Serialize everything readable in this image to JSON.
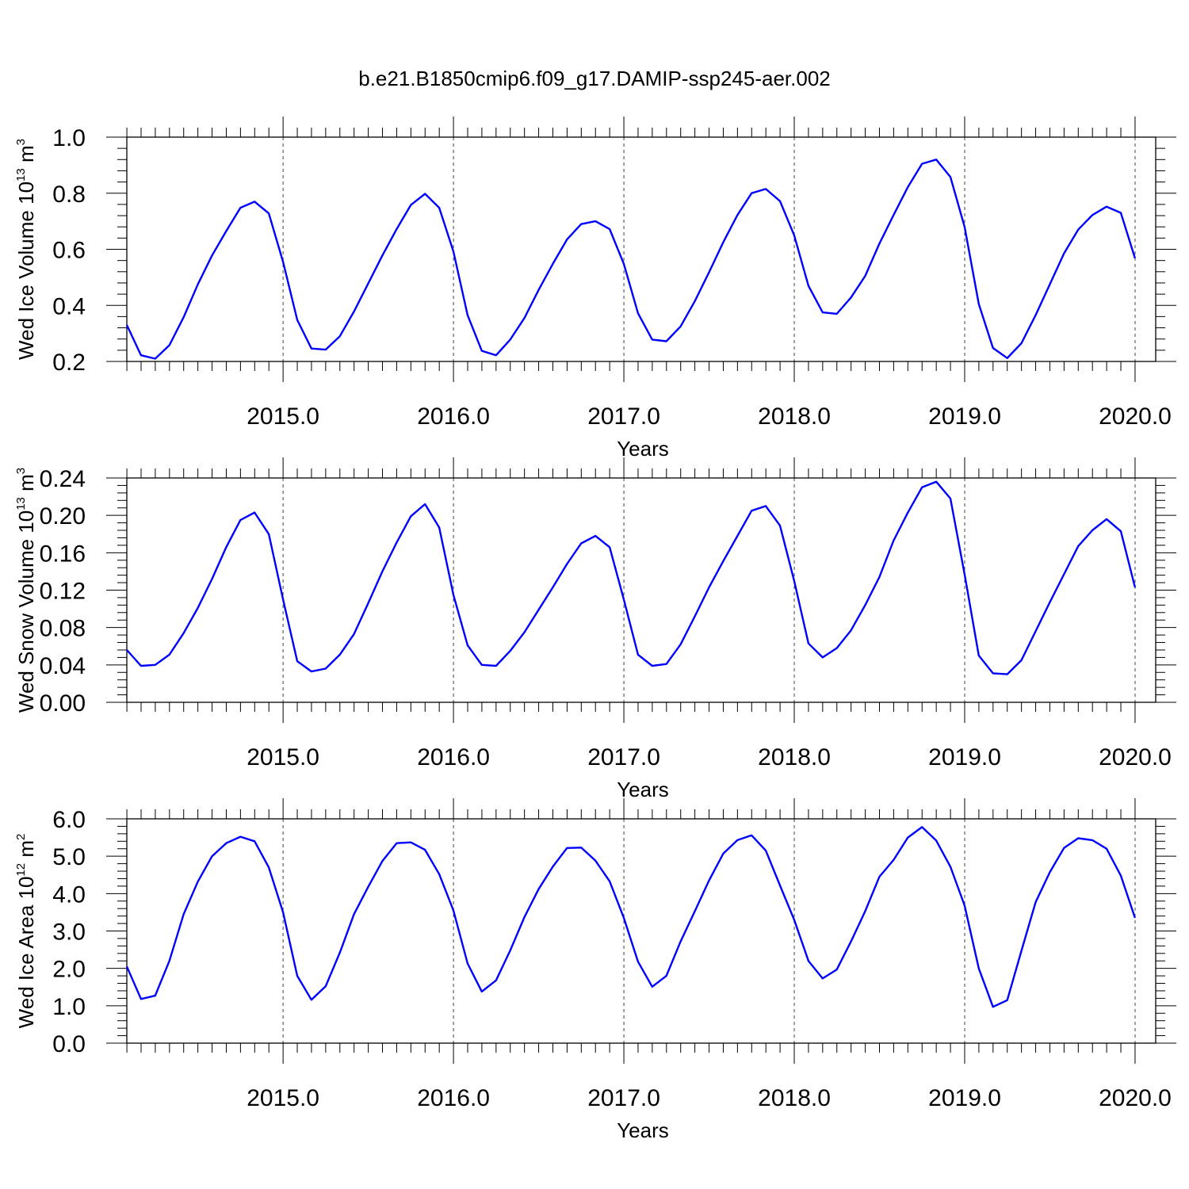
{
  "figure": {
    "title": "b.e21.B1850cmip6.f09_g17.DAMIP-ssp245-aer.002"
  },
  "chart_data": [
    {
      "type": "line",
      "name": "ice-volume",
      "ylabel": "Wed Ice Volume 10",
      "ylabel_exp": "13",
      "ylabel_unit": "m",
      "ylabel_unit_exp": "3",
      "xlabel": "Years",
      "xlim": [
        2014.083,
        2020.0
      ],
      "ylim": [
        0.2,
        1.0
      ],
      "yticks": [
        0.2,
        0.4,
        0.6,
        0.8,
        1.0
      ],
      "ytick_labels": [
        "0.2",
        "0.4",
        "0.6",
        "0.8",
        "1.0"
      ],
      "xticks": [
        2015,
        2016,
        2017,
        2018,
        2019,
        2020
      ],
      "xtick_labels": [
        "2015.0",
        "2016.0",
        "2017.0",
        "2018.0",
        "2019.0",
        "2020.0"
      ],
      "color": "#0000ff",
      "grid_x": "dashed",
      "x_start": 2014.083,
      "x_step": 0.08333,
      "values": [
        0.33,
        0.222,
        0.21,
        0.258,
        0.358,
        0.475,
        0.578,
        0.665,
        0.748,
        0.77,
        0.728,
        0.555,
        0.348,
        0.246,
        0.242,
        0.29,
        0.378,
        0.478,
        0.578,
        0.672,
        0.758,
        0.798,
        0.748,
        0.592,
        0.365,
        0.238,
        0.222,
        0.278,
        0.355,
        0.455,
        0.548,
        0.635,
        0.69,
        0.7,
        0.672,
        0.548,
        0.372,
        0.278,
        0.272,
        0.325,
        0.415,
        0.518,
        0.625,
        0.722,
        0.8,
        0.815,
        0.772,
        0.65,
        0.47,
        0.375,
        0.37,
        0.428,
        0.505,
        0.62,
        0.722,
        0.822,
        0.905,
        0.92,
        0.858,
        0.68,
        0.405,
        0.248,
        0.212,
        0.265,
        0.365,
        0.475,
        0.585,
        0.67,
        0.722,
        0.752,
        0.73,
        0.568
      ]
    },
    {
      "type": "line",
      "name": "snow-volume",
      "ylabel": "Wed Snow Volume 10",
      "ylabel_exp": "13",
      "ylabel_unit": "m",
      "ylabel_unit_exp": "3",
      "xlabel": "Years",
      "xlim": [
        2014.083,
        2020.0
      ],
      "ylim": [
        0.0,
        0.24
      ],
      "yticks": [
        0.0,
        0.04,
        0.08,
        0.12,
        0.16,
        0.2,
        0.24
      ],
      "ytick_labels": [
        "0.00",
        "0.04",
        "0.08",
        "0.12",
        "0.16",
        "0.20",
        "0.24"
      ],
      "xticks": [
        2015,
        2016,
        2017,
        2018,
        2019,
        2020
      ],
      "xtick_labels": [
        "2015.0",
        "2016.0",
        "2017.0",
        "2018.0",
        "2019.0",
        "2020.0"
      ],
      "color": "#0000ff",
      "grid_x": "dashed",
      "x_start": 2014.083,
      "x_step": 0.08333,
      "values": [
        0.056,
        0.039,
        0.04,
        0.051,
        0.074,
        0.101,
        0.132,
        0.166,
        0.195,
        0.203,
        0.18,
        0.11,
        0.044,
        0.033,
        0.036,
        0.051,
        0.073,
        0.106,
        0.14,
        0.171,
        0.199,
        0.212,
        0.187,
        0.115,
        0.061,
        0.04,
        0.039,
        0.055,
        0.075,
        0.099,
        0.123,
        0.148,
        0.17,
        0.178,
        0.166,
        0.11,
        0.051,
        0.039,
        0.041,
        0.062,
        0.092,
        0.123,
        0.151,
        0.178,
        0.205,
        0.21,
        0.189,
        0.13,
        0.063,
        0.048,
        0.058,
        0.077,
        0.104,
        0.134,
        0.173,
        0.203,
        0.23,
        0.236,
        0.218,
        0.137,
        0.05,
        0.031,
        0.03,
        0.045,
        0.076,
        0.107,
        0.137,
        0.167,
        0.184,
        0.196,
        0.183,
        0.123
      ]
    },
    {
      "type": "line",
      "name": "ice-area",
      "ylabel": "Wed Ice Area 10",
      "ylabel_exp": "12",
      "ylabel_unit": "m",
      "ylabel_unit_exp": "2",
      "xlabel": "Years",
      "xlim": [
        2014.083,
        2020.0
      ],
      "ylim": [
        0.0,
        6.0
      ],
      "yticks": [
        0.0,
        1.0,
        2.0,
        3.0,
        4.0,
        5.0,
        6.0
      ],
      "ytick_labels": [
        "0.0",
        "1.0",
        "2.0",
        "3.0",
        "4.0",
        "5.0",
        "6.0"
      ],
      "xticks": [
        2015,
        2016,
        2017,
        2018,
        2019,
        2020
      ],
      "xtick_labels": [
        "2015.0",
        "2016.0",
        "2017.0",
        "2018.0",
        "2019.0",
        "2020.0"
      ],
      "color": "#0000ff",
      "grid_x": "dashed",
      "x_start": 2014.083,
      "x_step": 0.08333,
      "values": [
        2.05,
        1.18,
        1.27,
        2.2,
        3.45,
        4.32,
        5.0,
        5.35,
        5.52,
        5.4,
        4.7,
        3.5,
        1.8,
        1.16,
        1.52,
        2.42,
        3.45,
        4.18,
        4.87,
        5.35,
        5.37,
        5.17,
        4.52,
        3.55,
        2.13,
        1.38,
        1.68,
        2.48,
        3.37,
        4.12,
        4.72,
        5.22,
        5.23,
        4.88,
        4.33,
        3.35,
        2.18,
        1.51,
        1.8,
        2.72,
        3.53,
        4.35,
        5.07,
        5.43,
        5.56,
        5.15,
        4.22,
        3.3,
        2.2,
        1.73,
        1.97,
        2.72,
        3.53,
        4.45,
        4.9,
        5.5,
        5.78,
        5.42,
        4.72,
        3.68,
        2.0,
        0.97,
        1.15,
        2.47,
        3.77,
        4.57,
        5.22,
        5.48,
        5.43,
        5.2,
        4.48,
        3.35
      ]
    }
  ]
}
